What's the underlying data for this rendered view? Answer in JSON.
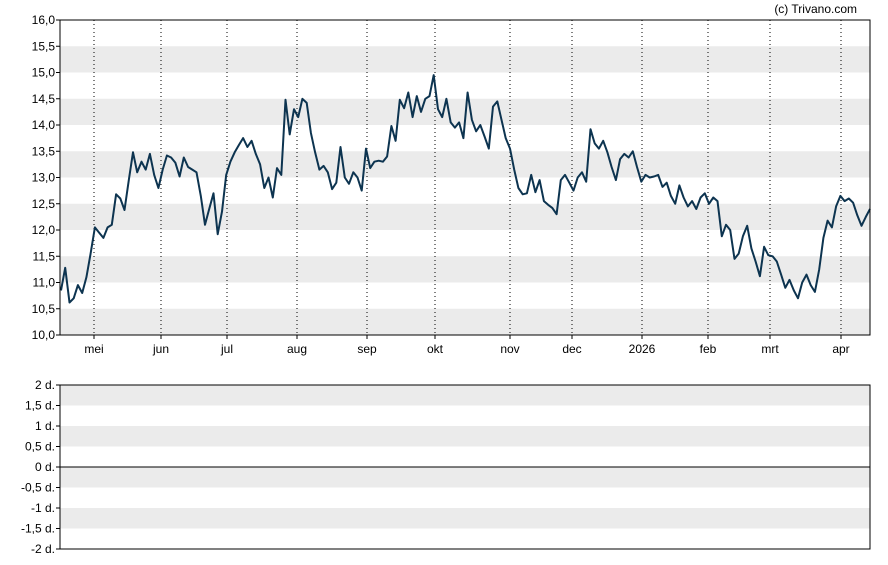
{
  "copyright": "(c) Trivano.com",
  "colors": {
    "line": "#0d3450",
    "band": "#ebebeb",
    "frame": "#000000",
    "vgrid": "#000000",
    "text": "#000000"
  },
  "chart_data": [
    {
      "type": "line",
      "title": "",
      "xlabel": "",
      "ylabel": "",
      "ylim": [
        10.0,
        16.0
      ],
      "grid": "alternating horizontal bands, dotted vertical lines at month starts",
      "y_ticks": [
        "16,0",
        "15,5",
        "15,0",
        "14,5",
        "14,0",
        "13,5",
        "13,0",
        "12,5",
        "12,0",
        "11,5",
        "11,0",
        "10,5",
        "10,0"
      ],
      "x_labels": [
        "mei",
        "jun",
        "jul",
        "aug",
        "sep",
        "okt",
        "nov",
        "dec",
        "2026",
        "feb",
        "mrt",
        "apr"
      ],
      "series": [
        {
          "values": [
            10.85,
            11.28,
            10.62,
            10.7,
            10.95,
            10.8,
            11.1,
            11.55,
            12.05,
            11.95,
            11.85,
            12.05,
            12.1,
            12.68,
            12.6,
            12.38,
            12.95,
            13.48,
            13.1,
            13.3,
            13.15,
            13.45,
            13.05,
            12.8,
            13.15,
            13.42,
            13.38,
            13.28,
            13.02,
            13.38,
            13.2,
            13.15,
            13.1,
            12.65,
            12.1,
            12.4,
            12.7,
            11.92,
            12.35,
            13.05,
            13.3,
            13.48,
            13.62,
            13.75,
            13.58,
            13.7,
            13.45,
            13.25,
            12.8,
            13.0,
            12.62,
            13.18,
            13.05,
            14.48,
            13.82,
            14.3,
            14.15,
            14.5,
            14.42,
            13.85,
            13.48,
            13.15,
            13.22,
            13.1,
            12.78,
            12.9,
            13.58,
            13.0,
            12.88,
            13.1,
            13.0,
            12.75,
            13.55,
            13.18,
            13.3,
            13.32,
            13.3,
            13.4,
            13.98,
            13.7,
            14.48,
            14.32,
            14.62,
            14.15,
            14.55,
            14.25,
            14.5,
            14.55,
            14.95,
            14.3,
            14.15,
            14.5,
            14.05,
            13.95,
            14.05,
            13.75,
            14.62,
            14.1,
            13.88,
            14.0,
            13.78,
            13.55,
            14.35,
            14.45,
            14.1,
            13.75,
            13.55,
            13.15,
            12.8,
            12.68,
            12.7,
            13.05,
            12.72,
            12.95,
            12.55,
            12.48,
            12.42,
            12.3,
            12.95,
            13.05,
            12.9,
            12.75,
            13.0,
            13.1,
            12.92,
            13.92,
            13.65,
            13.55,
            13.7,
            13.48,
            13.2,
            12.95,
            13.35,
            13.45,
            13.38,
            13.5,
            13.2,
            12.92,
            13.05,
            13.0,
            13.02,
            13.05,
            12.82,
            12.9,
            12.65,
            12.5,
            12.85,
            12.62,
            12.45,
            12.55,
            12.4,
            12.62,
            12.7,
            12.5,
            12.62,
            12.55,
            11.88,
            12.1,
            12.0,
            11.45,
            11.55,
            11.88,
            12.08,
            11.65,
            11.4,
            11.12,
            11.68,
            11.52,
            11.5,
            11.4,
            11.15,
            10.9,
            11.05,
            10.85,
            10.7,
            11.0,
            11.15,
            10.95,
            10.82,
            11.25,
            11.85,
            12.18,
            12.05,
            12.45,
            12.65,
            12.55,
            12.6,
            12.52,
            12.28,
            12.08,
            12.25,
            12.4
          ]
        }
      ]
    },
    {
      "type": "line",
      "title": "",
      "ylim": [
        -2,
        2
      ],
      "grid": "alternating horizontal bands, zero line",
      "y_ticks": [
        "2 d.",
        "1,5 d.",
        "1 d.",
        "0,5 d.",
        "0 d.",
        "-0,5 d.",
        "-1 d.",
        "-1,5 d.",
        "-2 d."
      ],
      "series": []
    }
  ]
}
